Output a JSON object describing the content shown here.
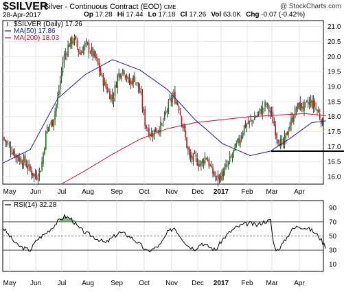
{
  "header": {
    "symbol": "$SILVER",
    "description": "Silver - Continuous Contract (EOD)",
    "exchange": "CME",
    "watermark": "@ StockCharts.com",
    "date": "28-Apr-2017",
    "quotes": [
      {
        "label": "Op",
        "value": "17.28"
      },
      {
        "label": "Hi",
        "value": "17.44"
      },
      {
        "label": "Lo",
        "value": "17.18"
      },
      {
        "label": "Cl",
        "value": "17.26"
      },
      {
        "label": "Vol",
        "value": "63.0K"
      },
      {
        "label": "Chg",
        "value": "-0.07 (-0.42%)"
      }
    ]
  },
  "chart_data": [
    {
      "type": "candlestick",
      "legend": [
        {
          "name": "$SILVER (Daily) 17.26",
          "color": "#000000",
          "marker": "candle"
        },
        {
          "name": "MA(50) 17.86",
          "color": "#1a1a9c",
          "marker": "line"
        },
        {
          "name": "MA(200) 18.03",
          "color": "#c8102e",
          "marker": "line"
        }
      ],
      "y_ticks": [
        "21.0",
        "20.5",
        "20.0",
        "19.5",
        "19.0",
        "18.5",
        "18.0",
        "17.5",
        "17.0",
        "16.5",
        "16.0"
      ],
      "ylim": [
        15.75,
        21.2
      ],
      "x_ticks": [
        "May",
        "Jun",
        "Jul",
        "Aug",
        "Sep",
        "Oct",
        "Nov",
        "Dec",
        "2017",
        "Feb",
        "Mar",
        "Apr"
      ],
      "x_bold": [
        "2017"
      ],
      "close_path": [
        [
          0,
          17.3
        ],
        [
          8,
          17.05
        ],
        [
          16,
          16.8
        ],
        [
          24,
          16.6
        ],
        [
          32,
          16.5
        ],
        [
          40,
          16.2
        ],
        [
          48,
          16.0
        ],
        [
          56,
          16.3
        ],
        [
          64,
          17.6
        ],
        [
          72,
          17.8
        ],
        [
          80,
          18.6
        ],
        [
          88,
          19.9
        ],
        [
          96,
          20.4
        ],
        [
          104,
          20.6
        ],
        [
          112,
          20.1
        ],
        [
          120,
          20.4
        ],
        [
          128,
          20.2
        ],
        [
          136,
          19.9
        ],
        [
          144,
          19.3
        ],
        [
          152,
          18.9
        ],
        [
          160,
          18.6
        ],
        [
          168,
          19.4
        ],
        [
          176,
          19.6
        ],
        [
          184,
          19.1
        ],
        [
          192,
          19.3
        ],
        [
          200,
          18.8
        ],
        [
          208,
          17.7
        ],
        [
          216,
          17.4
        ],
        [
          224,
          17.6
        ],
        [
          232,
          17.7
        ],
        [
          240,
          18.3
        ],
        [
          248,
          18.7
        ],
        [
          256,
          18.4
        ],
        [
          264,
          17.5
        ],
        [
          272,
          16.6
        ],
        [
          280,
          16.6
        ],
        [
          288,
          16.4
        ],
        [
          296,
          16.7
        ],
        [
          304,
          16.2
        ],
        [
          312,
          15.9
        ],
        [
          320,
          16.1
        ],
        [
          328,
          16.4
        ],
        [
          336,
          16.8
        ],
        [
          344,
          17.2
        ],
        [
          352,
          17.7
        ],
        [
          360,
          17.8
        ],
        [
          368,
          18.0
        ],
        [
          376,
          18.2
        ],
        [
          384,
          18.4
        ],
        [
          392,
          18.0
        ],
        [
          400,
          17.3
        ],
        [
          408,
          17.0
        ],
        [
          416,
          17.6
        ],
        [
          424,
          18.1
        ],
        [
          432,
          18.4
        ],
        [
          440,
          18.3
        ],
        [
          448,
          18.5
        ],
        [
          456,
          18.3
        ],
        [
          464,
          17.9
        ],
        [
          468,
          17.6
        ],
        [
          471,
          17.26
        ]
      ],
      "ma50_path": [
        [
          0,
          16.45
        ],
        [
          40,
          16.9
        ],
        [
          80,
          18.6
        ],
        [
          120,
          19.4
        ],
        [
          160,
          19.9
        ],
        [
          200,
          19.55
        ],
        [
          240,
          18.9
        ],
        [
          280,
          17.9
        ],
        [
          320,
          17.1
        ],
        [
          360,
          16.7
        ],
        [
          390,
          16.85
        ],
        [
          420,
          17.3
        ],
        [
          450,
          17.8
        ],
        [
          471,
          17.86
        ]
      ],
      "ma200_path": [
        [
          85,
          15.75
        ],
        [
          120,
          16.2
        ],
        [
          160,
          16.75
        ],
        [
          200,
          17.25
        ],
        [
          240,
          17.6
        ],
        [
          280,
          17.8
        ],
        [
          320,
          17.9
        ],
        [
          360,
          18.0
        ],
        [
          400,
          18.05
        ],
        [
          440,
          18.1
        ],
        [
          471,
          18.03
        ]
      ],
      "support_line": {
        "y": 16.85,
        "x_range": [
          395,
          501
        ]
      }
    },
    {
      "type": "line",
      "legend": [
        {
          "name": "RSI(14) 32.28",
          "color": "#000000",
          "marker": "line"
        }
      ],
      "y_ticks": [
        "90",
        "70",
        "50",
        "30",
        "10"
      ],
      "ylim": [
        0,
        100
      ],
      "reference_lines": [
        70,
        50,
        30
      ],
      "x_ticks": [
        "May",
        "Jun",
        "Jul",
        "Aug",
        "Sep",
        "Oct",
        "Nov",
        "Dec",
        "2017",
        "Feb",
        "Mar",
        "Apr"
      ],
      "x_bold": [
        "2017"
      ],
      "rsi_path": [
        [
          0,
          62
        ],
        [
          10,
          50
        ],
        [
          20,
          38
        ],
        [
          30,
          33
        ],
        [
          40,
          30
        ],
        [
          50,
          45
        ],
        [
          60,
          52
        ],
        [
          70,
          60
        ],
        [
          80,
          70
        ],
        [
          90,
          78
        ],
        [
          100,
          74
        ],
        [
          110,
          62
        ],
        [
          120,
          55
        ],
        [
          130,
          50
        ],
        [
          140,
          45
        ],
        [
          150,
          40
        ],
        [
          160,
          48
        ],
        [
          170,
          55
        ],
        [
          180,
          52
        ],
        [
          190,
          46
        ],
        [
          200,
          38
        ],
        [
          210,
          28
        ],
        [
          220,
          32
        ],
        [
          230,
          38
        ],
        [
          240,
          55
        ],
        [
          250,
          62
        ],
        [
          260,
          48
        ],
        [
          270,
          36
        ],
        [
          280,
          32
        ],
        [
          290,
          40
        ],
        [
          300,
          35
        ],
        [
          310,
          30
        ],
        [
          320,
          45
        ],
        [
          330,
          55
        ],
        [
          340,
          62
        ],
        [
          350,
          66
        ],
        [
          360,
          68
        ],
        [
          370,
          65
        ],
        [
          380,
          70
        ],
        [
          390,
          72
        ],
        [
          395,
          35
        ],
        [
          400,
          30
        ],
        [
          410,
          42
        ],
        [
          420,
          58
        ],
        [
          430,
          64
        ],
        [
          440,
          62
        ],
        [
          450,
          58
        ],
        [
          460,
          50
        ],
        [
          468,
          38
        ],
        [
          471,
          32.28
        ]
      ]
    }
  ]
}
